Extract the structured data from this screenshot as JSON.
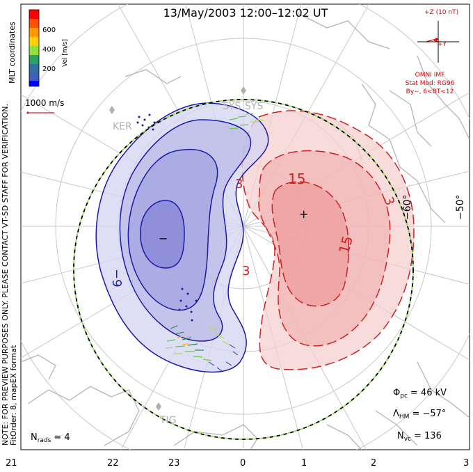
{
  "title": "13/May/2003 12:00–12:02 UT",
  "colorbar": {
    "unit_label": "Vel [m/s]",
    "ticks": [
      "600",
      "400",
      "200"
    ],
    "colors": [
      "#ff0000",
      "#ff8000",
      "#ffc000",
      "#c0ff40",
      "#40c040",
      "#208080",
      "#4060c0",
      "#0000ff"
    ]
  },
  "coord_system": "MLT coordinates",
  "note": "NOTE: FOR PREVIEW PURPOSES ONLY. PLEASE CONTACT VT-SD STAFF FOR VERIFICATION.",
  "fit_order": "FitOrder: 8, mapEX format",
  "scale_vector": "1000 m/s",
  "imf": {
    "header": "+Z (10 nT)",
    "y_label": "+Y",
    "source": "OMNI IMF",
    "stat_mod": "Stat Mod: RG96",
    "condition": "By−, 6<BT<12"
  },
  "latitude_labels": [
    "−60°",
    "−50°"
  ],
  "contour_labels": {
    "negative": [
      "−9",
      "−"
    ],
    "positive": [
      "3",
      "3",
      "3",
      "15",
      "15",
      "+"
    ]
  },
  "stations": [
    "KER",
    "SYS",
    "SYS",
    "TIG"
  ],
  "stats": {
    "phi_pc_label": "Φ",
    "phi_pc_sub": "pc",
    "phi_pc_value": "= 46 kV",
    "lambda_label": "Λ",
    "lambda_sub": "HM",
    "lambda_value": "= −57°",
    "nvc_label": "N",
    "nvc_sub": "vc",
    "nvc_value": "= 136",
    "nrads_label": "N",
    "nrads_sub": "rads",
    "nrads_value": "= 4"
  },
  "mlt_labels": [
    "21",
    "22",
    "23",
    "0",
    "1",
    "2",
    "3"
  ],
  "map_colors": {
    "negative_line": "#1a1aa6",
    "negative_fill": "#9a9adf",
    "positive_line": "#cc2222",
    "positive_fill": "#f1a0a0",
    "boundary_dash": "#8ae04a"
  }
}
